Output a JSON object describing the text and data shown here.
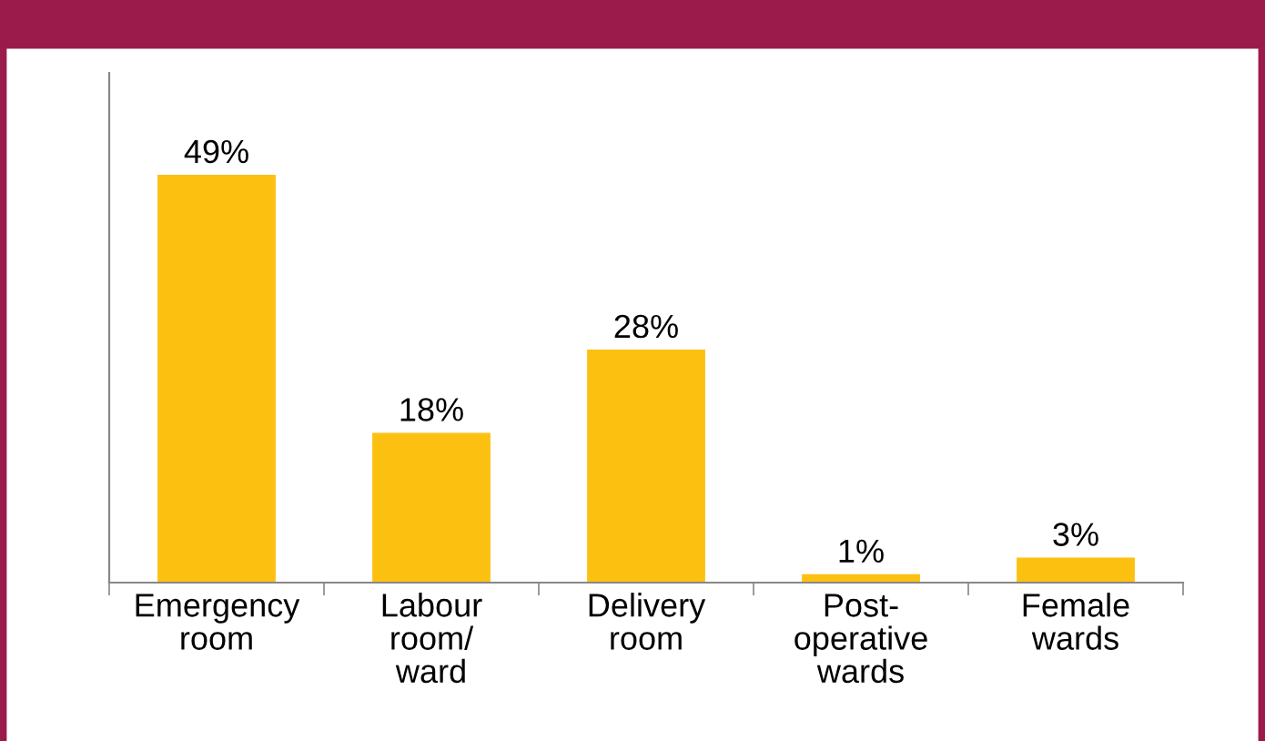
{
  "chart_data": {
    "type": "bar",
    "categories": [
      "Emergency\nroom",
      "Labour\nroom/\nward",
      "Delivery\nroom",
      "Post-\noperative\nwards",
      "Female\nwards"
    ],
    "values": [
      49,
      18,
      28,
      1,
      3
    ],
    "value_labels": [
      "49%",
      "18%",
      "28%",
      "1%",
      "3%"
    ],
    "color": "#fcc010",
    "grid": false,
    "legend": false
  }
}
